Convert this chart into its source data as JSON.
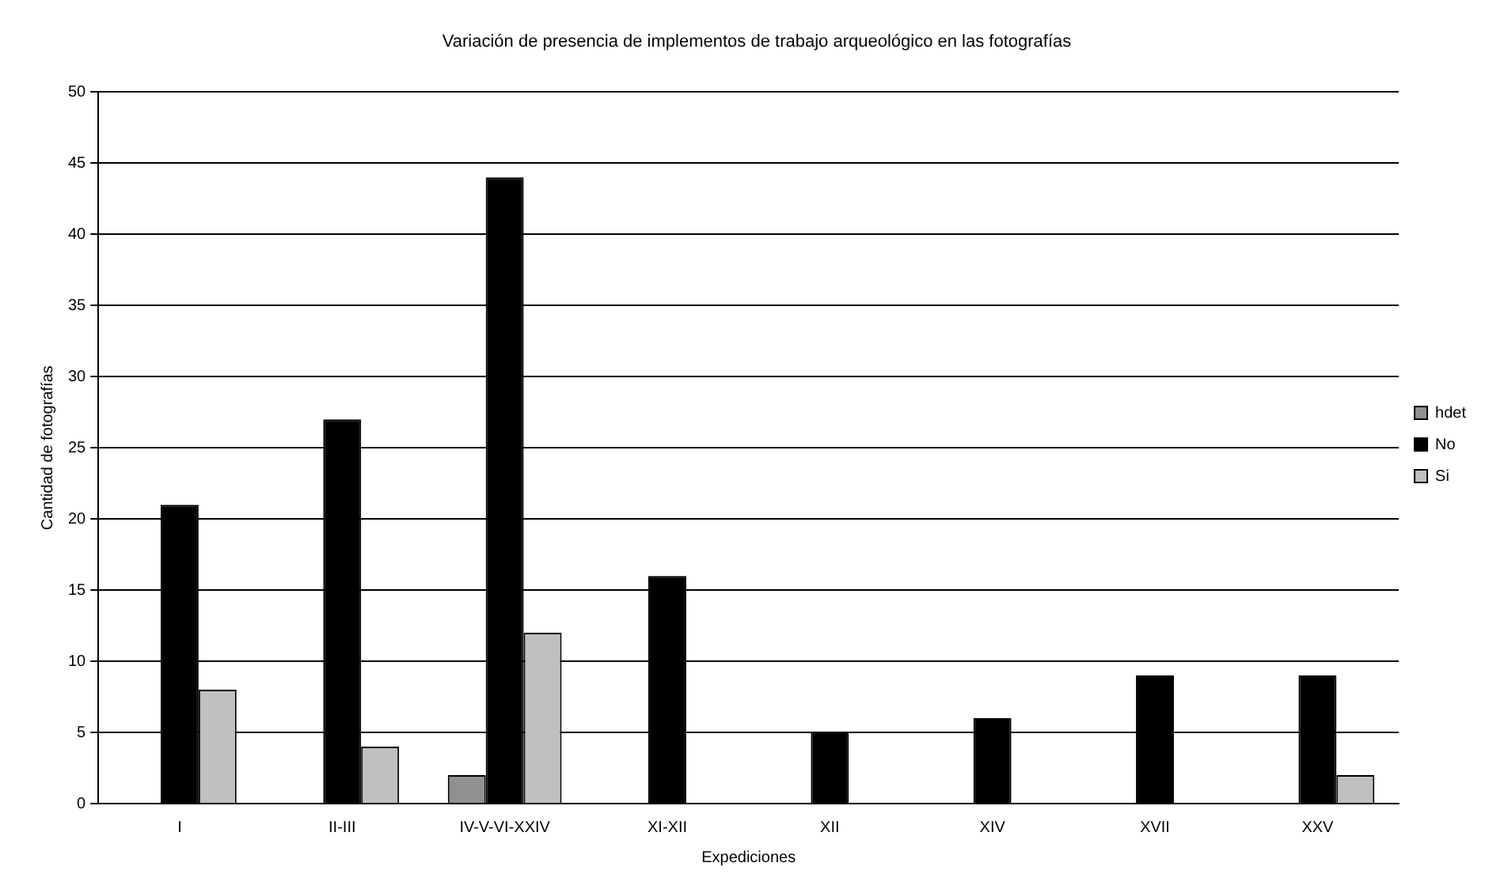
{
  "chart_data": {
    "type": "bar",
    "title": "Variación de presencia de implementos de trabajo arqueológico en las fotografías",
    "xlabel": "Expediciones",
    "ylabel": "Cantidad de fotografías",
    "categories": [
      "I",
      "II-III",
      "IV-V-VI-XXIV",
      "XI-XII",
      "XII",
      "XIV",
      "XVII",
      "XXV"
    ],
    "series": [
      {
        "name": "hdet",
        "color": "#909090",
        "values": [
          null,
          null,
          2,
          null,
          null,
          null,
          null,
          null
        ]
      },
      {
        "name": "No",
        "color": "#000000",
        "values": [
          21,
          27,
          44,
          16,
          5,
          6,
          9,
          9
        ]
      },
      {
        "name": "Si",
        "color": "#c0c0c0",
        "values": [
          8,
          4,
          12,
          null,
          null,
          null,
          null,
          2
        ]
      }
    ],
    "ylim": [
      0,
      50
    ],
    "yticks": [
      0,
      5,
      10,
      15,
      20,
      25,
      30,
      35,
      40,
      45,
      50
    ],
    "grid": "y",
    "legend": "right"
  }
}
